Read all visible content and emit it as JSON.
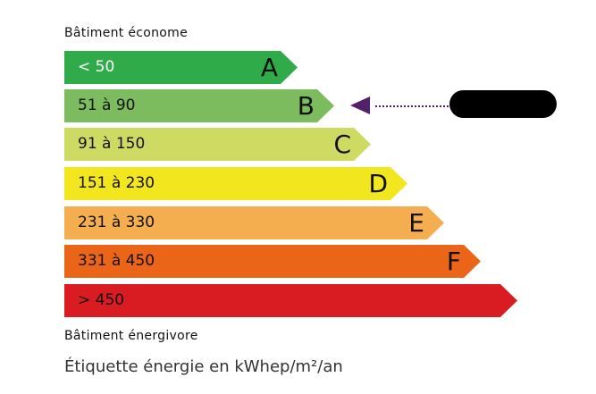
{
  "top_label": "Bâtiment économe",
  "bottom_label": "Bâtiment énergivore",
  "footer": "Étiquette énergie en kWhep/m²/an",
  "classes": [
    {
      "range": "< 50",
      "letter": "A",
      "color": "#2fab4a",
      "text_color": "#ffffff"
    },
    {
      "range": "51 à 90",
      "letter": "B",
      "color": "#7cbc5f",
      "text_color": "#111111"
    },
    {
      "range": "91 à 150",
      "letter": "C",
      "color": "#cedb62",
      "text_color": "#111111"
    },
    {
      "range": "151 à 230",
      "letter": "D",
      "color": "#f2e61e",
      "text_color": "#111111"
    },
    {
      "range": "231 à 330",
      "letter": "E",
      "color": "#f4ad4f",
      "text_color": "#111111"
    },
    {
      "range": "331 à 450",
      "letter": "F",
      "color": "#eb6519",
      "text_color": "#111111"
    },
    {
      "range": "> 450",
      "letter": "",
      "color": "#d81c21",
      "text_color": "#111111"
    }
  ],
  "current_class": "B",
  "marker_color": "#55206b"
}
